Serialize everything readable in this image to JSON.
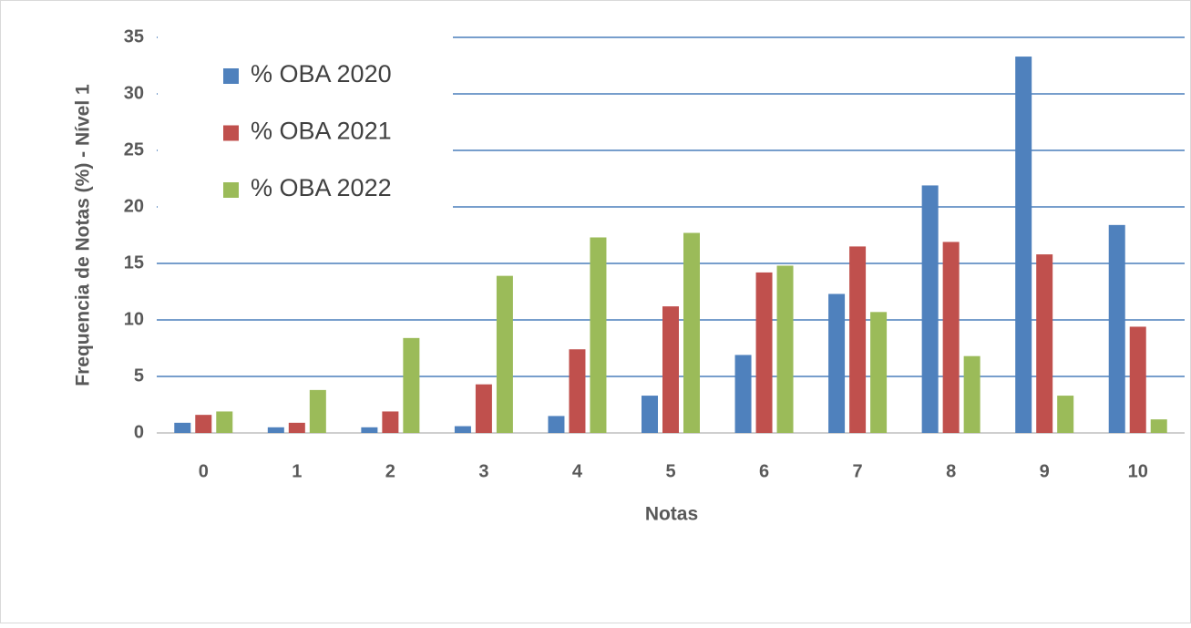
{
  "chart_data": {
    "type": "bar",
    "x_label": "Notas",
    "y_label": "Frequencia de Notas (%) - Nível 1",
    "categories": [
      "0",
      "1",
      "2",
      "3",
      "4",
      "5",
      "6",
      "7",
      "8",
      "9",
      "10"
    ],
    "series": [
      {
        "name": "% OBA 2020",
        "color": "#4f81bd",
        "values": [
          0.9,
          0.5,
          0.5,
          0.6,
          1.5,
          3.3,
          6.9,
          12.3,
          21.9,
          33.3,
          18.4
        ]
      },
      {
        "name": "% OBA 2021",
        "color": "#c0504d",
        "values": [
          1.6,
          0.9,
          1.9,
          4.3,
          7.4,
          11.2,
          14.2,
          16.5,
          16.9,
          15.8,
          9.4
        ]
      },
      {
        "name": "% OBA 2022",
        "color": "#9bbb59",
        "values": [
          1.9,
          3.8,
          8.4,
          13.9,
          17.3,
          17.7,
          14.8,
          10.7,
          6.8,
          3.3,
          1.2
        ]
      }
    ],
    "ylim": [
      0,
      35
    ],
    "yticks": [
      0,
      5,
      10,
      15,
      20,
      25,
      30,
      35
    ],
    "grid": true,
    "legend": "upper left"
  }
}
